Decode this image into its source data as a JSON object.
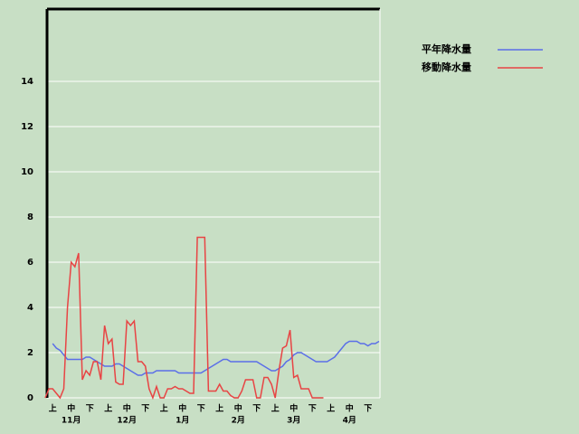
{
  "chart_data": {
    "type": "line",
    "categories": [
      null,
      null,
      "上",
      null,
      null,
      null,
      null,
      "中",
      null,
      null,
      null,
      null,
      "下",
      null,
      null,
      null,
      null,
      "上",
      null,
      null,
      null,
      null,
      "中",
      null,
      null,
      null,
      null,
      "下",
      null,
      null,
      null,
      null,
      "上",
      null,
      null,
      null,
      null,
      "中",
      null,
      null,
      null,
      null,
      "下",
      null,
      null,
      null,
      null,
      "上",
      null,
      null,
      null,
      null,
      "中",
      null,
      null,
      null,
      null,
      "下",
      null,
      null,
      null,
      null,
      "上",
      null,
      null,
      null,
      null,
      "中",
      null,
      null,
      null,
      null,
      "下",
      null,
      null,
      null,
      null,
      "上",
      null,
      null,
      null,
      null,
      "中",
      null,
      null,
      null,
      null,
      "下",
      null,
      null,
      null
    ],
    "months": [
      "11月",
      "12月",
      "1月",
      "2月",
      "3月",
      "4月"
    ],
    "series": [
      {
        "name": "平年降水量",
        "color": "#5b6fe8",
        "values": [
          null,
          null,
          2.4,
          2.2,
          2.1,
          1.9,
          1.7,
          1.7,
          1.7,
          1.7,
          1.7,
          1.8,
          1.8,
          1.7,
          1.6,
          1.5,
          1.4,
          1.4,
          1.4,
          1.5,
          1.5,
          1.4,
          1.3,
          1.2,
          1.1,
          1.0,
          1.0,
          1.1,
          1.1,
          1.1,
          1.2,
          1.2,
          1.2,
          1.2,
          1.2,
          1.2,
          1.1,
          1.1,
          1.1,
          1.1,
          1.1,
          1.1,
          1.1,
          1.2,
          1.3,
          1.4,
          1.5,
          1.6,
          1.7,
          1.7,
          1.6,
          1.6,
          1.6,
          1.6,
          1.6,
          1.6,
          1.6,
          1.6,
          1.5,
          1.4,
          1.3,
          1.2,
          1.2,
          1.3,
          1.4,
          1.6,
          1.7,
          1.9,
          2.0,
          2.0,
          1.9,
          1.8,
          1.7,
          1.6,
          1.6,
          1.6,
          1.6,
          1.7,
          1.8,
          2.0,
          2.2,
          2.4,
          2.5,
          2.5,
          2.5,
          2.4,
          2.4,
          2.3,
          2.4,
          2.4,
          2.5
        ]
      },
      {
        "name": "移動降水量",
        "color": "#e84444",
        "values": [
          0,
          0.4,
          0.4,
          0.2,
          0,
          0.4,
          4,
          6,
          5.8,
          6.4,
          0.8,
          1.2,
          1.0,
          1.6,
          1.6,
          0.8,
          3.2,
          2.4,
          2.6,
          0.7,
          0.6,
          0.6,
          3.4,
          3.2,
          3.4,
          1.6,
          1.6,
          1.4,
          0.4,
          0,
          0.5,
          0,
          0,
          0.4,
          0.4,
          0.5,
          0.4,
          0.4,
          0.3,
          0.2,
          0.2,
          7.1,
          7.1,
          7.1,
          0.3,
          0.3,
          0.3,
          0.6,
          0.3,
          0.3,
          0.1,
          0,
          0,
          0.3,
          0.8,
          0.8,
          0.8,
          0,
          0,
          0.9,
          0.9,
          0.6,
          0,
          1.2,
          2.2,
          2.3,
          3,
          0.9,
          1.0,
          0.4,
          0.4,
          0.4,
          0,
          0,
          0,
          0,
          null,
          null,
          null,
          null,
          null,
          null,
          null,
          null,
          null,
          null,
          null,
          null,
          null,
          null,
          null
        ]
      }
    ],
    "ylim": [
      0,
      17.2
    ],
    "yticks": [
      0,
      2,
      4,
      6,
      8,
      10,
      12,
      14
    ],
    "grid": true,
    "legend": "top-right"
  }
}
